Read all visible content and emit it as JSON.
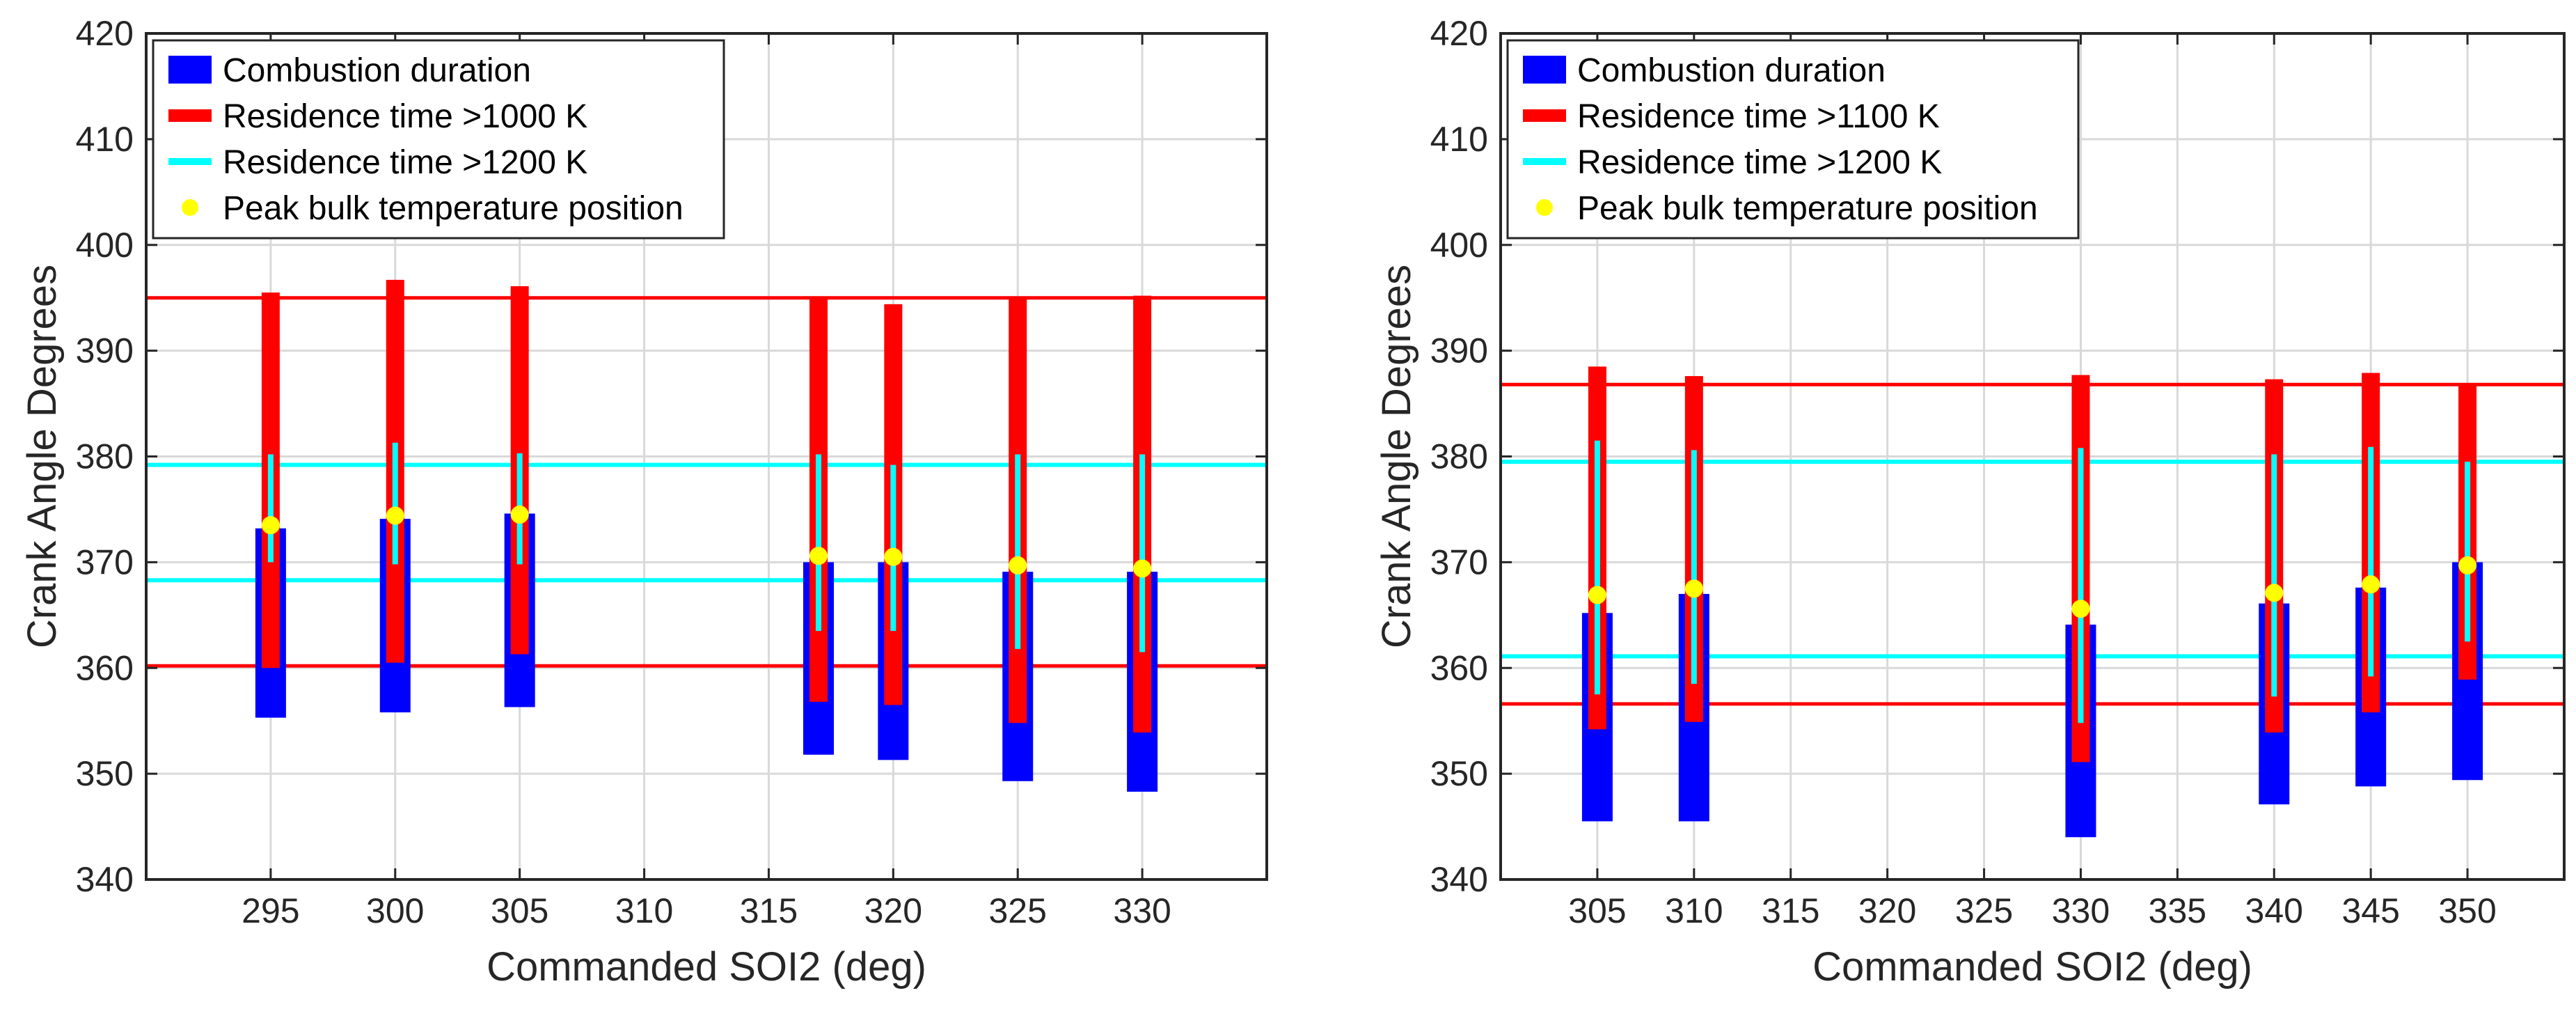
{
  "colors": {
    "combustion": "#0000ff",
    "residence_low": "#ff0000",
    "residence_high": "#00ffff",
    "peak": "#ffff00",
    "hline_red": "#ff0000",
    "hline_cyan": "#00ffff",
    "grid": "#d9d9d9",
    "axis": "#262626"
  },
  "chart_data": [
    {
      "type": "range-bar",
      "xlabel": "Commanded SOI2 (deg)",
      "ylabel": "Crank Angle Degrees",
      "xlim": [
        290,
        335
      ],
      "ylim": [
        340,
        420
      ],
      "xticks": [
        "295",
        "300",
        "305",
        "310",
        "315",
        "320",
        "325",
        "330"
      ],
      "yticks": [
        "340",
        "350",
        "360",
        "370",
        "380",
        "390",
        "400",
        "410",
        "420"
      ],
      "grid": true,
      "legend": {
        "position": "top-left",
        "entries": [
          "Combustion duration",
          "Residence time >1000 K",
          "Residence time >1200 K",
          "Peak bulk temperature position"
        ]
      },
      "reference_lines": {
        "red": [
          395,
          360.2
        ],
        "cyan": [
          379.2,
          368.3
        ]
      },
      "points": [
        {
          "x": 295,
          "comb": [
            355.3,
            373.2
          ],
          "res_low": [
            360.0,
            395.5
          ],
          "res_high": [
            370.0,
            380.2
          ],
          "peak": 373.5
        },
        {
          "x": 300,
          "comb": [
            355.8,
            374.1
          ],
          "res_low": [
            360.5,
            396.7
          ],
          "res_high": [
            369.8,
            381.3
          ],
          "peak": 374.4
        },
        {
          "x": 305,
          "comb": [
            356.3,
            374.6
          ],
          "res_low": [
            361.3,
            396.1
          ],
          "res_high": [
            369.8,
            380.3
          ],
          "peak": 374.5
        },
        {
          "x": 317,
          "comb": [
            351.8,
            370.0
          ],
          "res_low": [
            356.8,
            395.1
          ],
          "res_high": [
            363.5,
            380.2
          ],
          "peak": 370.6
        },
        {
          "x": 320,
          "comb": [
            351.3,
            370.0
          ],
          "res_low": [
            356.5,
            394.4
          ],
          "res_high": [
            363.5,
            379.2
          ],
          "peak": 370.5
        },
        {
          "x": 325,
          "comb": [
            349.3,
            369.1
          ],
          "res_low": [
            354.8,
            395.0
          ],
          "res_high": [
            361.8,
            380.2
          ],
          "peak": 369.7
        },
        {
          "x": 330,
          "comb": [
            348.3,
            369.1
          ],
          "res_low": [
            353.9,
            395.2
          ],
          "res_high": [
            361.5,
            380.2
          ],
          "peak": 369.4
        }
      ]
    },
    {
      "type": "range-bar",
      "xlabel": "Commanded SOI2 (deg)",
      "ylabel": "Crank Angle Degrees",
      "xlim": [
        300,
        355
      ],
      "ylim": [
        340,
        420
      ],
      "xticks": [
        "305",
        "310",
        "315",
        "320",
        "325",
        "330",
        "335",
        "340",
        "345",
        "350"
      ],
      "yticks": [
        "340",
        "350",
        "360",
        "370",
        "380",
        "390",
        "400",
        "410",
        "420"
      ],
      "grid": true,
      "legend": {
        "position": "top-left",
        "entries": [
          "Combustion duration",
          "Residence time >1100 K",
          "Residence time >1200 K",
          "Peak bulk temperature position"
        ]
      },
      "reference_lines": {
        "red": [
          386.8,
          356.6
        ],
        "cyan": [
          379.5,
          361.1
        ]
      },
      "points": [
        {
          "x": 305,
          "comb": [
            345.5,
            365.2
          ],
          "res_low": [
            354.2,
            388.5
          ],
          "res_high": [
            357.5,
            381.5
          ],
          "peak": 366.9
        },
        {
          "x": 310,
          "comb": [
            345.5,
            367.0
          ],
          "res_low": [
            354.9,
            387.6
          ],
          "res_high": [
            358.5,
            380.6
          ],
          "peak": 367.5
        },
        {
          "x": 330,
          "comb": [
            344.0,
            364.1
          ],
          "res_low": [
            351.1,
            387.7
          ],
          "res_high": [
            354.8,
            380.8
          ],
          "peak": 365.6
        },
        {
          "x": 340,
          "comb": [
            347.1,
            366.1
          ],
          "res_low": [
            353.9,
            387.3
          ],
          "res_high": [
            357.3,
            380.2
          ],
          "peak": 367.1
        },
        {
          "x": 345,
          "comb": [
            348.8,
            367.6
          ],
          "res_low": [
            355.8,
            387.9
          ],
          "res_high": [
            359.2,
            380.9
          ],
          "peak": 367.9
        },
        {
          "x": 350,
          "comb": [
            349.4,
            370.0
          ],
          "res_low": [
            358.9,
            386.8
          ],
          "res_high": [
            362.5,
            379.5
          ],
          "peak": 369.7
        }
      ]
    }
  ]
}
